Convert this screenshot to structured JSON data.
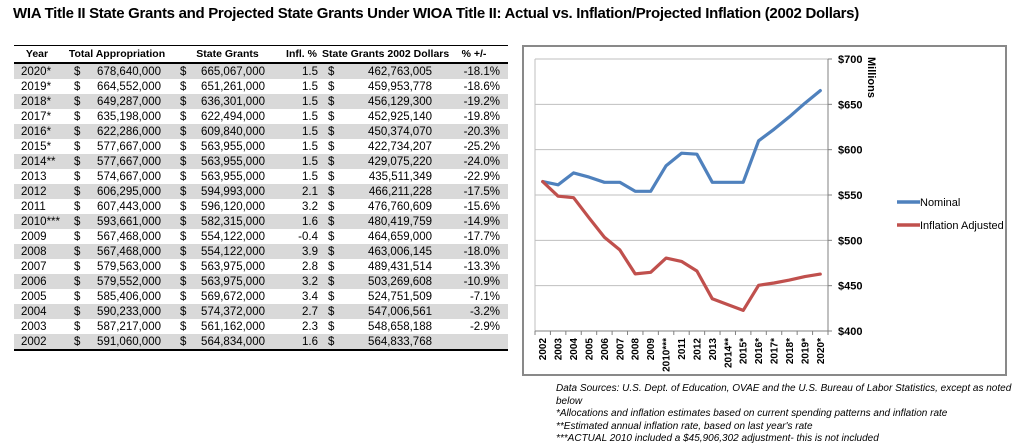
{
  "title": "WIA Title II State Grants and Projected State Grants Under WIOA Title II: Actual vs. Inflation/Projected Inflation (2002 Dollars)",
  "table": {
    "headers": [
      "Year",
      "Total Appropriation",
      "State Grants",
      "Infl. %",
      "State Grants 2002 Dollars",
      "% +/-"
    ],
    "currency_symbol": "$",
    "rows": [
      {
        "year": "2020*",
        "appropriation": "678,640,000",
        "state_grants": "665,067,000",
        "infl": "1.5",
        "grants_2002": "462,763,005",
        "pct": "-18.1%"
      },
      {
        "year": "2019*",
        "appropriation": "664,552,000",
        "state_grants": "651,261,000",
        "infl": "1.5",
        "grants_2002": "459,953,778",
        "pct": "-18.6%"
      },
      {
        "year": "2018*",
        "appropriation": "649,287,000",
        "state_grants": "636,301,000",
        "infl": "1.5",
        "grants_2002": "456,129,300",
        "pct": "-19.2%"
      },
      {
        "year": "2017*",
        "appropriation": "635,198,000",
        "state_grants": "622,494,000",
        "infl": "1.5",
        "grants_2002": "452,925,140",
        "pct": "-19.8%"
      },
      {
        "year": "2016*",
        "appropriation": "622,286,000",
        "state_grants": "609,840,000",
        "infl": "1.5",
        "grants_2002": "450,374,070",
        "pct": "-20.3%"
      },
      {
        "year": "2015*",
        "appropriation": "577,667,000",
        "state_grants": "563,955,000",
        "infl": "1.5",
        "grants_2002": "422,734,207",
        "pct": "-25.2%"
      },
      {
        "year": "2014**",
        "appropriation": "577,667,000",
        "state_grants": "563,955,000",
        "infl": "1.5",
        "grants_2002": "429,075,220",
        "pct": "-24.0%"
      },
      {
        "year": "2013",
        "appropriation": "574,667,000",
        "state_grants": "563,955,000",
        "infl": "1.5",
        "grants_2002": "435,511,349",
        "pct": "-22.9%"
      },
      {
        "year": "2012",
        "appropriation": "606,295,000",
        "state_grants": "594,993,000",
        "infl": "2.1",
        "grants_2002": "466,211,228",
        "pct": "-17.5%"
      },
      {
        "year": "2011",
        "appropriation": "607,443,000",
        "state_grants": "596,120,000",
        "infl": "3.2",
        "grants_2002": "476,760,609",
        "pct": "-15.6%"
      },
      {
        "year": "2010***",
        "appropriation": "593,661,000",
        "state_grants": "582,315,000",
        "infl": "1.6",
        "grants_2002": "480,419,759",
        "pct": "-14.9%"
      },
      {
        "year": "2009",
        "appropriation": "567,468,000",
        "state_grants": "554,122,000",
        "infl": "-0.4",
        "grants_2002": "464,659,000",
        "pct": "-17.7%"
      },
      {
        "year": "2008",
        "appropriation": "567,468,000",
        "state_grants": "554,122,000",
        "infl": "3.9",
        "grants_2002": "463,006,145",
        "pct": "-18.0%"
      },
      {
        "year": "2007",
        "appropriation": "579,563,000",
        "state_grants": "563,975,000",
        "infl": "2.8",
        "grants_2002": "489,431,514",
        "pct": "-13.3%"
      },
      {
        "year": "2006",
        "appropriation": "579,552,000",
        "state_grants": "563,975,000",
        "infl": "3.2",
        "grants_2002": "503,269,608",
        "pct": "-10.9%"
      },
      {
        "year": "2005",
        "appropriation": "585,406,000",
        "state_grants": "569,672,000",
        "infl": "3.4",
        "grants_2002": "524,751,509",
        "pct": "-7.1%"
      },
      {
        "year": "2004",
        "appropriation": "590,233,000",
        "state_grants": "574,372,000",
        "infl": "2.7",
        "grants_2002": "547,006,561",
        "pct": "-3.2%"
      },
      {
        "year": "2003",
        "appropriation": "587,217,000",
        "state_grants": "561,162,000",
        "infl": "2.3",
        "grants_2002": "548,658,188",
        "pct": "-2.9%"
      },
      {
        "year": "2002",
        "appropriation": "591,060,000",
        "state_grants": "564,834,000",
        "infl": "1.6",
        "grants_2002": "564,833,768",
        "pct": ""
      }
    ]
  },
  "chart_data": {
    "type": "line",
    "title": "",
    "xlabel": "",
    "ylabel": "Millions",
    "ylim": [
      400,
      700
    ],
    "y_tick_step": 50,
    "y_tick_labels": [
      "$400",
      "$450",
      "$500",
      "$550",
      "$600",
      "$650",
      "$700"
    ],
    "grid": true,
    "legend_position": "right-inside",
    "categories": [
      "2002",
      "2003",
      "2004",
      "2005",
      "2006",
      "2007",
      "2008",
      "2009",
      "2010***",
      "2011",
      "2012",
      "2013",
      "2014**",
      "2015*",
      "2016*",
      "2017*",
      "2018*",
      "2019*",
      "2020*"
    ],
    "series": [
      {
        "name": "Nominal",
        "color": "#4F81BD",
        "values": [
          564.8,
          561.2,
          574.4,
          569.7,
          564.0,
          564.0,
          554.1,
          554.1,
          582.3,
          596.1,
          595.0,
          564.0,
          564.0,
          564.0,
          609.8,
          622.5,
          636.3,
          651.3,
          665.1
        ]
      },
      {
        "name": "Inflation Adjusted",
        "color": "#C0504D",
        "values": [
          564.8,
          548.7,
          547.0,
          524.8,
          503.3,
          489.4,
          463.0,
          464.7,
          480.4,
          476.8,
          466.2,
          435.5,
          429.1,
          422.7,
          450.4,
          452.9,
          456.1,
          460.0,
          462.8
        ]
      }
    ]
  },
  "footnotes": [
    "Data Sources: U.S. Dept. of Education, OVAE and the U.S.  Bureau of Labor Statistics, except as noted below",
    "*Allocations and inflation estimates based on current spending patterns and inflation rate",
    "**Estimated annual inflation rate, based on last year's rate",
    "***ACTUAL 2010 included a $45,906,302 adjustment- this is not included"
  ],
  "colors": {
    "stripe": "#D9D9D9",
    "gridline": "#BFBFBF",
    "axis": "#808080",
    "frame": "#898989"
  }
}
